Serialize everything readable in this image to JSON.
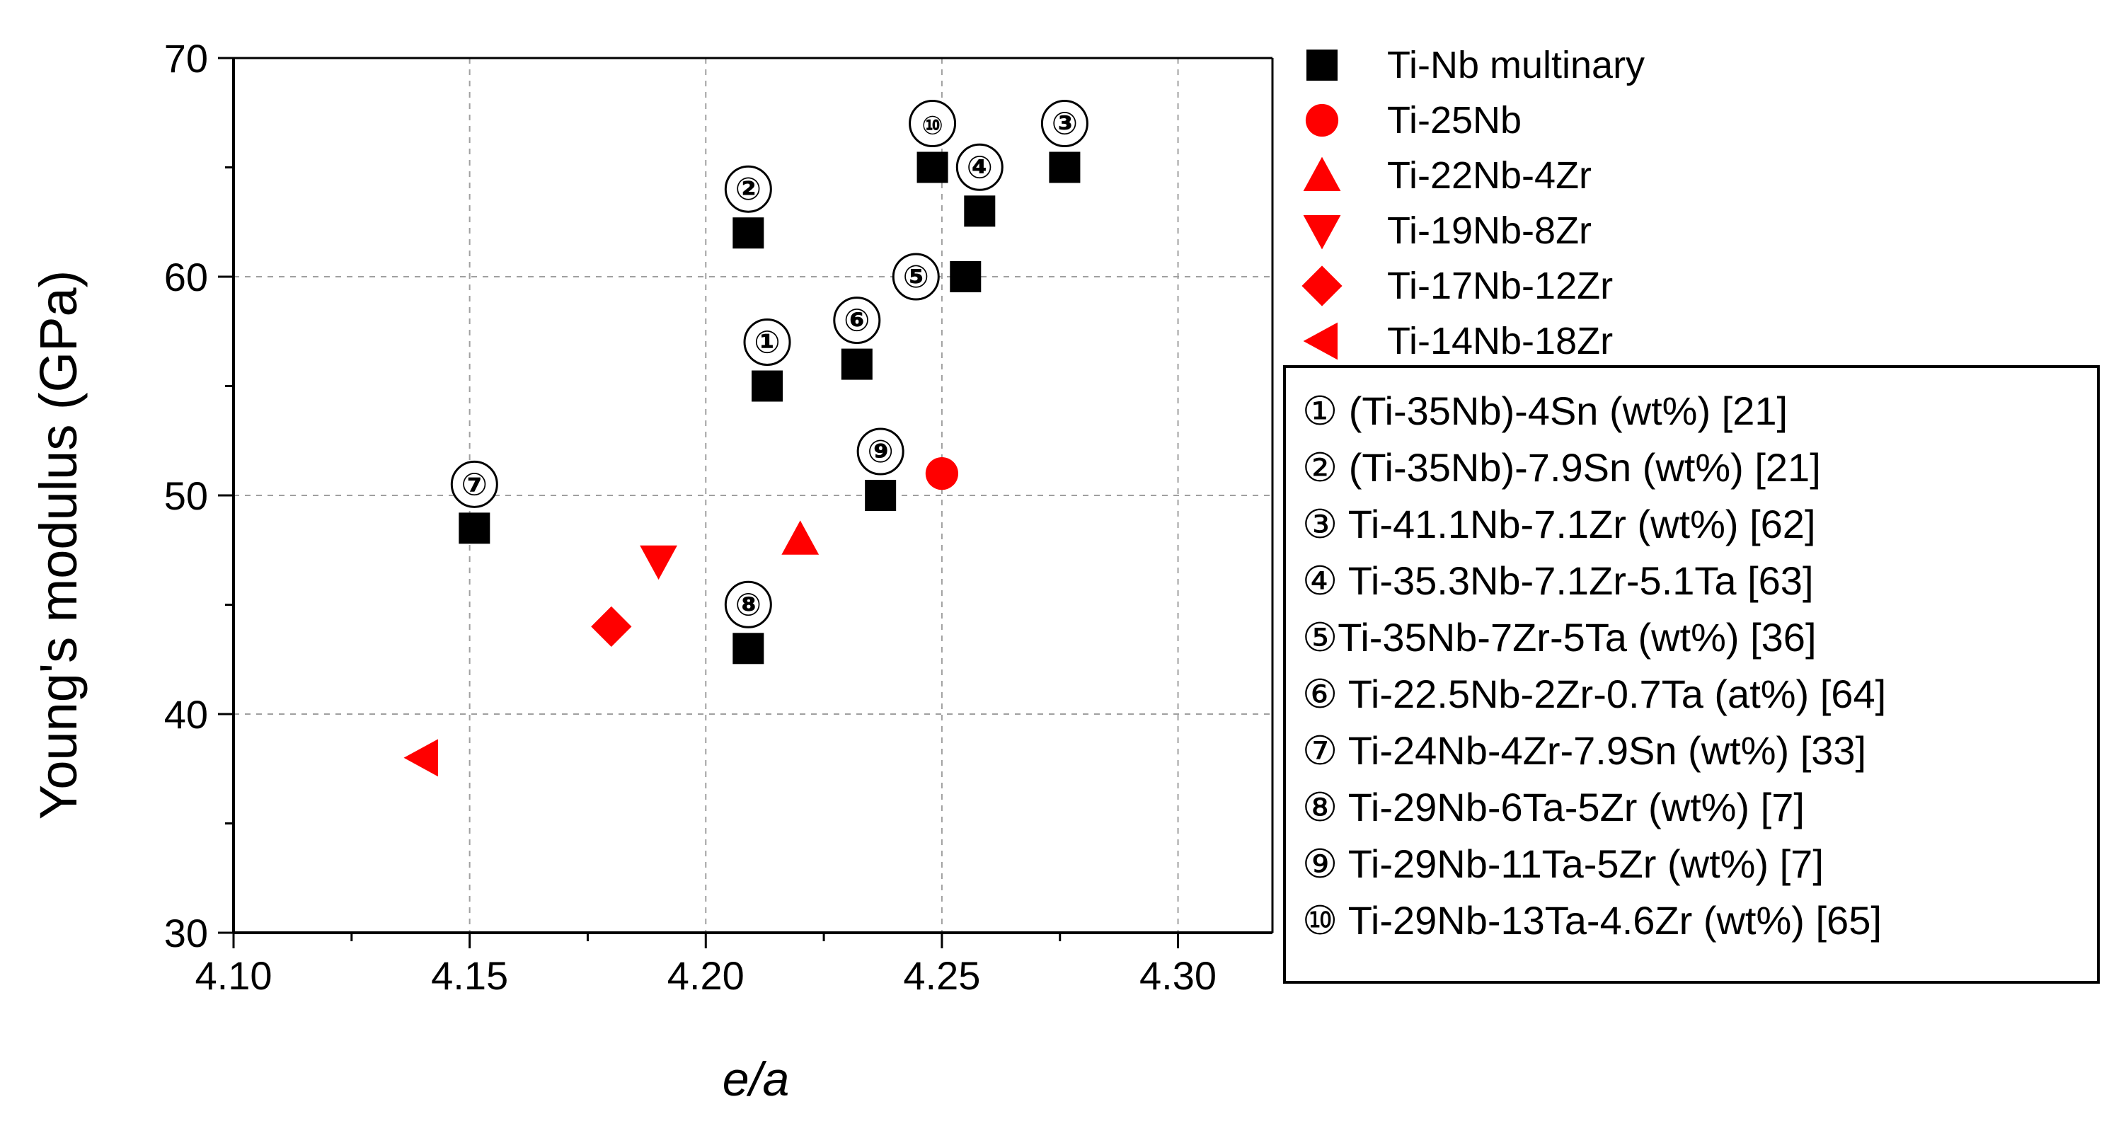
{
  "chart_data": {
    "type": "scatter",
    "title": "",
    "xlabel": "e/a",
    "ylabel": "Young's modulus (GPa)",
    "xlim": [
      4.1,
      4.32
    ],
    "ylim": [
      30,
      70
    ],
    "xticks": [
      4.1,
      4.15,
      4.2,
      4.25,
      4.3
    ],
    "yticks": [
      30,
      40,
      50,
      60,
      70
    ],
    "xtick_labels": [
      "4.10",
      "4.15",
      "4.20",
      "4.25",
      "4.30"
    ],
    "ytick_labels": [
      "30",
      "40",
      "50",
      "60",
      "70"
    ],
    "grid": true,
    "legend_position": "right",
    "colors": {
      "black": "#000000",
      "red": "#ff0000"
    },
    "series": [
      {
        "name": "Ti-Nb multinary",
        "marker": "square",
        "color": "#000000",
        "points": [
          {
            "x": 4.213,
            "y": 55,
            "label": "①"
          },
          {
            "x": 4.209,
            "y": 62,
            "label": "②"
          },
          {
            "x": 4.276,
            "y": 65,
            "label": "③"
          },
          {
            "x": 4.258,
            "y": 63,
            "label": "④"
          },
          {
            "x": 4.255,
            "y": 60,
            "label": "⑤"
          },
          {
            "x": 4.232,
            "y": 56,
            "label": "⑥"
          },
          {
            "x": 4.151,
            "y": 48.5,
            "label": "⑦"
          },
          {
            "x": 4.209,
            "y": 43,
            "label": "⑧"
          },
          {
            "x": 4.237,
            "y": 50,
            "label": "⑨"
          },
          {
            "x": 4.248,
            "y": 65,
            "label": "⑩"
          }
        ]
      },
      {
        "name": "Ti-25Nb",
        "marker": "circle",
        "color": "#ff0000",
        "points": [
          {
            "x": 4.25,
            "y": 51
          }
        ]
      },
      {
        "name": "Ti-22Nb-4Zr",
        "marker": "triangle-up",
        "color": "#ff0000",
        "points": [
          {
            "x": 4.22,
            "y": 48
          }
        ]
      },
      {
        "name": "Ti-19Nb-8Zr",
        "marker": "triangle-down",
        "color": "#ff0000",
        "points": [
          {
            "x": 4.19,
            "y": 47
          }
        ]
      },
      {
        "name": "Ti-17Nb-12Zr",
        "marker": "diamond",
        "color": "#ff0000",
        "points": [
          {
            "x": 4.18,
            "y": 44
          }
        ]
      },
      {
        "name": "Ti-14Nb-18Zr",
        "marker": "triangle-left",
        "color": "#ff0000",
        "points": [
          {
            "x": 4.14,
            "y": 38
          }
        ]
      }
    ],
    "annotations_legend": [
      "① (Ti-35Nb)-4Sn (wt%) [21]",
      "② (Ti-35Nb)-7.9Sn (wt%) [21]",
      "③ Ti-41.1Nb-7.1Zr (wt%) [62]",
      "④ Ti-35.3Nb-7.1Zr-5.1Ta [63]",
      "⑤Ti-35Nb-7Zr-5Ta (wt%) [36]",
      "⑥ Ti-22.5Nb-2Zr-0.7Ta (at%) [64]",
      "⑦ Ti-24Nb-4Zr-7.9Sn (wt%) [33]",
      "⑧ Ti-29Nb-6Ta-5Zr (wt%) [7]",
      "⑨ Ti-29Nb-11Ta-5Zr (wt%) [7]",
      "⑩ Ti-29Nb-13Ta-4.6Zr (wt%) [65]"
    ]
  }
}
